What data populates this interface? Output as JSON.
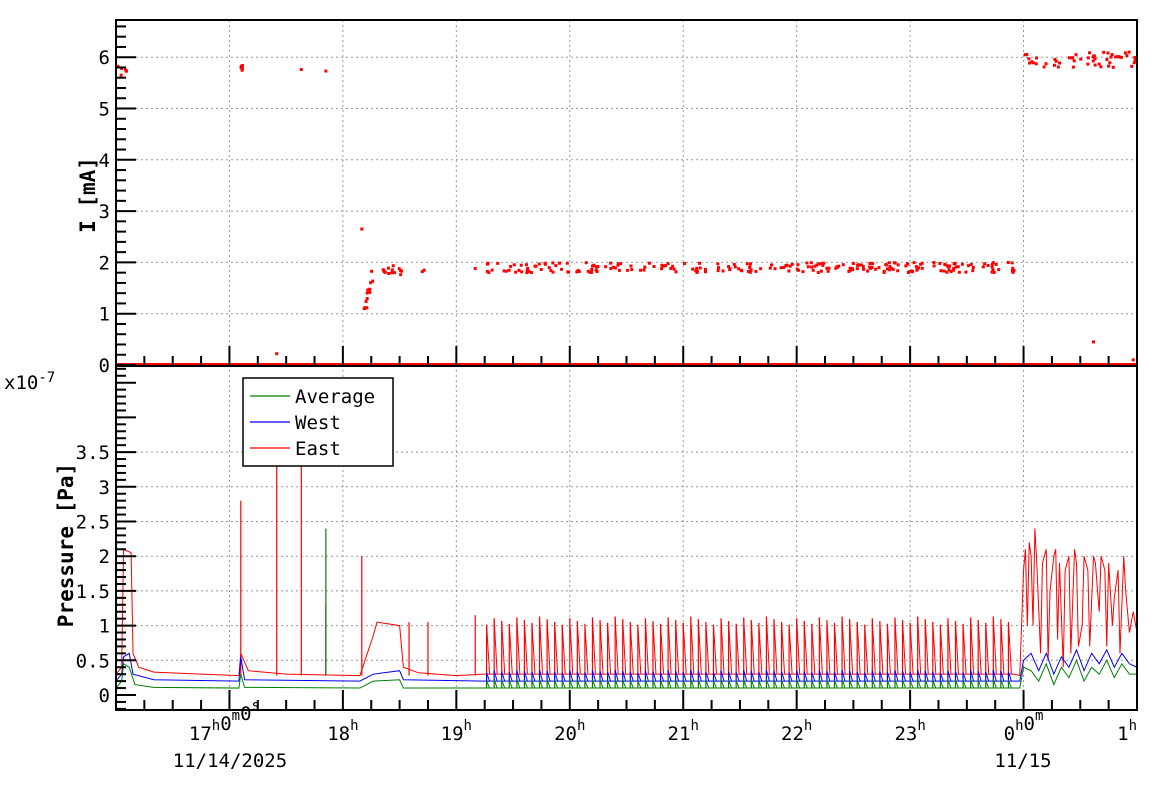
{
  "chart_data": [
    {
      "type": "scatter",
      "panel": "top",
      "ylabel": "I [mA]",
      "ylim": [
        0,
        6.6
      ],
      "yticks": [
        "0",
        "1",
        "2",
        "3",
        "4",
        "5",
        "6"
      ],
      "xlim": [
        "11/14 16:00",
        "11/15 01:00"
      ],
      "grid": true,
      "color": "#ff0000",
      "points": [
        [
          "11/14 17:25",
          0.22
        ],
        [
          "11/15 00:37",
          0.45
        ],
        [
          "11/14 18:10",
          2.65
        ],
        [
          "11/14 17:38",
          5.76
        ],
        [
          "11/14 17:51",
          5.73
        ],
        [
          "11/14 18:42",
          1.82
        ],
        [
          "11/14 18:43",
          1.85
        ],
        [
          "11/14 19:10",
          1.88
        ],
        [
          "11/15 00:58",
          0.1
        ]
      ],
      "clusters": [
        {
          "start": "11/14 16:01",
          "end": "11/14 16:07",
          "value": 5.72,
          "spread": 0.12
        },
        {
          "start": "11/14 17:06",
          "end": "11/14 17:07",
          "value": 5.8,
          "spread": 0.06
        },
        {
          "start": "11/14 18:11",
          "end": "11/14 18:13",
          "value": 1.2,
          "spread": 0.25
        },
        {
          "start": "11/14 18:13",
          "end": "11/14 18:16",
          "value": 1.6,
          "spread": 0.3
        },
        {
          "start": "11/14 18:16",
          "end": "11/14 18:32",
          "value": 1.85,
          "spread": 0.1
        },
        {
          "start": "11/14 19:16",
          "end": "11/14 23:56",
          "value": 1.9,
          "spread": 0.1
        },
        {
          "start": "11/15 00:00",
          "end": "11/15 01:00",
          "value": 5.95,
          "spread": 0.15
        }
      ],
      "baseline": {
        "start": "11/14 16:00",
        "end": "11/15 01:00",
        "value": 0
      }
    },
    {
      "type": "line",
      "panel": "bottom",
      "ylabel": "Pressure [Pa]",
      "yscale_label": "x10",
      "yscale_exponent": "-7",
      "ylim": [
        -0.22,
        4.74
      ],
      "yticks": [
        "0",
        "0.5",
        "1",
        "1.5",
        "2",
        "2.5",
        "3",
        "3.5"
      ],
      "xticks": [
        "17h0m0s",
        "18h",
        "19h",
        "20h",
        "21h",
        "22h",
        "23h",
        "0h0m",
        "1h"
      ],
      "xtick_dates": [
        "11/14/2025",
        "11/15"
      ],
      "grid": true,
      "legend": "top-left",
      "series": [
        {
          "name": "Average",
          "color": "#008000",
          "points": [
            [
              "11/14 16:00",
              0.1
            ],
            [
              "11/14 16:03",
              0.2
            ],
            [
              "11/14 16:04",
              0.45
            ],
            [
              "11/14 16:07",
              0.4
            ],
            [
              "11/14 16:10",
              0.15
            ],
            [
              "11/14 16:20",
              0.11
            ],
            [
              "11/14 17:05",
              0.1
            ],
            [
              "11/14 17:06",
              0.3
            ],
            [
              "11/14 17:08",
              0.11
            ],
            [
              "11/14 18:09",
              0.1
            ],
            [
              "11/14 18:16",
              0.2
            ],
            [
              "11/14 18:30",
              0.22
            ],
            [
              "11/14 18:32",
              0.1
            ],
            [
              "11/14 19:15",
              0.1
            ],
            [
              "11/14 23:58",
              0.1
            ],
            [
              "11/15 00:00",
              0.4
            ],
            [
              "11/15 00:04",
              0.35
            ],
            [
              "11/15 00:08",
              0.2
            ],
            [
              "11/15 00:12",
              0.45
            ],
            [
              "11/15 00:16",
              0.15
            ],
            [
              "11/15 00:20",
              0.4
            ],
            [
              "11/15 00:24",
              0.25
            ],
            [
              "11/15 00:28",
              0.5
            ],
            [
              "11/15 00:32",
              0.2
            ],
            [
              "11/15 00:36",
              0.4
            ],
            [
              "11/15 00:40",
              0.3
            ],
            [
              "11/15 00:44",
              0.5
            ],
            [
              "11/15 00:48",
              0.25
            ],
            [
              "11/15 00:52",
              0.45
            ],
            [
              "11/15 00:56",
              0.3
            ],
            [
              "11/15 01:00",
              0.3
            ]
          ],
          "spikes": [
            [
              "11/14 17:51",
              2.4
            ]
          ],
          "periodic_spikes": {
            "start": "11/14 19:16",
            "end": "11/14 23:55",
            "interval_min": 4,
            "peak": 0.22
          }
        },
        {
          "name": "West",
          "color": "#0000ff",
          "points": [
            [
              "11/14 16:00",
              0.2
            ],
            [
              "11/14 16:03",
              0.3
            ],
            [
              "11/14 16:04",
              0.55
            ],
            [
              "11/14 16:07",
              0.6
            ],
            [
              "11/14 16:09",
              0.3
            ],
            [
              "11/14 16:20",
              0.22
            ],
            [
              "11/14 17:05",
              0.2
            ],
            [
              "11/14 17:06",
              0.55
            ],
            [
              "11/14 17:08",
              0.22
            ],
            [
              "11/14 18:09",
              0.2
            ],
            [
              "11/14 18:16",
              0.3
            ],
            [
              "11/14 18:30",
              0.35
            ],
            [
              "11/14 18:32",
              0.22
            ],
            [
              "11/14 19:15",
              0.2
            ],
            [
              "11/14 23:58",
              0.2
            ],
            [
              "11/15 00:00",
              0.5
            ],
            [
              "11/15 00:04",
              0.6
            ],
            [
              "11/15 00:08",
              0.35
            ],
            [
              "11/15 00:12",
              0.6
            ],
            [
              "11/15 00:16",
              0.3
            ],
            [
              "11/15 00:20",
              0.55
            ],
            [
              "11/15 00:24",
              0.4
            ],
            [
              "11/15 00:28",
              0.65
            ],
            [
              "11/15 00:32",
              0.35
            ],
            [
              "11/15 00:36",
              0.6
            ],
            [
              "11/15 00:40",
              0.45
            ],
            [
              "11/15 00:44",
              0.65
            ],
            [
              "11/15 00:48",
              0.4
            ],
            [
              "11/15 00:52",
              0.6
            ],
            [
              "11/15 00:56",
              0.45
            ],
            [
              "11/15 01:00",
              0.4
            ]
          ],
          "spikes": [],
          "periodic_spikes": {
            "start": "11/14 19:16",
            "end": "11/14 23:55",
            "interval_min": 4,
            "peak": 0.35
          }
        },
        {
          "name": "East",
          "color": "#ff0000",
          "points": [
            [
              "11/14 16:00",
              0.3
            ],
            [
              "11/14 16:03",
              0.4
            ],
            [
              "11/14 16:04",
              2.1
            ],
            [
              "11/14 16:08",
              2.05
            ],
            [
              "11/14 16:09",
              0.6
            ],
            [
              "11/14 16:12",
              0.4
            ],
            [
              "11/14 16:20",
              0.33
            ],
            [
              "11/14 16:45",
              0.3
            ],
            [
              "11/14 17:05",
              0.28
            ],
            [
              "11/14 17:06",
              0.6
            ],
            [
              "11/14 17:10",
              0.35
            ],
            [
              "11/14 17:30",
              0.3
            ],
            [
              "11/14 18:09",
              0.28
            ],
            [
              "11/14 18:16",
              0.85
            ],
            [
              "11/14 18:18",
              1.05
            ],
            [
              "11/14 18:30",
              1.0
            ],
            [
              "11/14 18:32",
              0.4
            ],
            [
              "11/14 18:40",
              0.32
            ],
            [
              "11/14 19:00",
              0.28
            ],
            [
              "11/14 19:15",
              0.3
            ],
            [
              "11/14 23:55",
              0.3
            ],
            [
              "11/14 23:58",
              0.28
            ],
            [
              "11/15 00:00",
              1.8
            ],
            [
              "11/15 00:01",
              2.1
            ],
            [
              "11/15 00:02",
              1.0
            ],
            [
              "11/15 00:03",
              2.2
            ],
            [
              "11/15 00:04",
              2.0
            ],
            [
              "11/15 00:05",
              1.0
            ],
            [
              "11/15 00:06",
              2.4
            ],
            [
              "11/15 00:07",
              1.9
            ],
            [
              "11/15 00:09",
              0.6
            ],
            [
              "11/15 00:10",
              1.9
            ],
            [
              "11/15 00:12",
              2.1
            ],
            [
              "11/15 00:13",
              0.5
            ],
            [
              "11/15 00:14",
              1.5
            ],
            [
              "11/15 00:16",
              2.0
            ],
            [
              "11/15 00:17",
              2.1
            ],
            [
              "11/15 00:18",
              0.8
            ],
            [
              "11/15 00:19",
              1.9
            ],
            [
              "11/15 00:21",
              0.4
            ],
            [
              "11/15 00:22",
              1.8
            ],
            [
              "11/15 00:24",
              2.0
            ],
            [
              "11/15 00:25",
              0.6
            ],
            [
              "11/15 00:27",
              2.1
            ],
            [
              "11/15 00:28",
              1.9
            ],
            [
              "11/15 00:29",
              0.7
            ],
            [
              "11/15 00:31",
              1.0
            ],
            [
              "11/15 00:32",
              2.0
            ],
            [
              "11/15 00:34",
              1.8
            ],
            [
              "11/15 00:35",
              0.7
            ],
            [
              "11/15 00:37",
              2.0
            ],
            [
              "11/15 00:38",
              1.9
            ],
            [
              "11/15 00:40",
              1.2
            ],
            [
              "11/15 00:41",
              2.0
            ],
            [
              "11/15 00:43",
              1.8
            ],
            [
              "11/15 00:44",
              0.7
            ],
            [
              "11/15 00:45",
              1.9
            ],
            [
              "11/15 00:47",
              1.0
            ],
            [
              "11/15 00:48",
              1.4
            ],
            [
              "11/15 00:50",
              1.8
            ],
            [
              "11/15 00:51",
              0.6
            ],
            [
              "11/15 00:53",
              2.0
            ],
            [
              "11/15 00:54",
              1.5
            ],
            [
              "11/15 00:56",
              0.9
            ],
            [
              "11/15 00:58",
              1.2
            ],
            [
              "11/15 01:00",
              0.9
            ]
          ],
          "spikes": [
            [
              "11/14 17:06",
              2.8
            ],
            [
              "11/14 17:25",
              3.4
            ],
            [
              "11/14 17:38",
              3.6
            ],
            [
              "11/14 17:51",
              1.3
            ],
            [
              "11/14 18:10",
              2.0
            ],
            [
              "11/14 18:35",
              1.05
            ],
            [
              "11/14 18:45",
              1.05
            ],
            [
              "11/14 19:10",
              1.15
            ]
          ],
          "periodic_spikes": {
            "start": "11/14 19:16",
            "end": "11/14 23:55",
            "interval_min": 4,
            "peak": 1.1
          }
        }
      ]
    }
  ]
}
